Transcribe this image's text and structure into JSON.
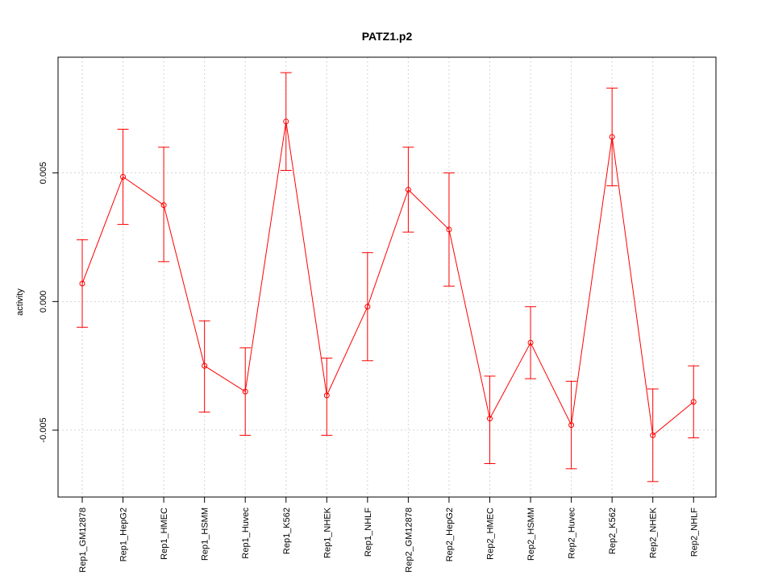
{
  "chart_data": {
    "type": "line",
    "title": "PATZ1.p2",
    "xlabel": "",
    "ylabel": "activity",
    "categories": [
      "Rep1_GM12878",
      "Rep1_HepG2",
      "Rep1_HMEC",
      "Rep1_HSMM",
      "Rep1_Huvec",
      "Rep1_K562",
      "Rep1_NHEK",
      "Rep1_NHLF",
      "Rep2_GM12878",
      "Rep2_HepG2",
      "Rep2_HMEC",
      "Rep2_HSMM",
      "Rep2_Huvec",
      "Rep2_K562",
      "Rep2_NHEK",
      "Rep2_NHLF"
    ],
    "values": [
      0.0007,
      0.00485,
      0.00375,
      -0.0025,
      -0.0035,
      0.007,
      -0.00365,
      -0.0002,
      0.00435,
      0.0028,
      -0.00455,
      -0.0016,
      -0.0048,
      0.0064,
      -0.0052,
      -0.0039
    ],
    "error_low": [
      -0.001,
      0.003,
      0.00155,
      -0.0043,
      -0.0052,
      0.0051,
      -0.0052,
      -0.0023,
      0.0027,
      0.0006,
      -0.0063,
      -0.003,
      -0.0065,
      0.0045,
      -0.007,
      -0.0053
    ],
    "error_high": [
      0.0024,
      0.0067,
      0.006,
      -0.00075,
      -0.0018,
      0.0089,
      -0.0022,
      0.0019,
      0.006,
      0.005,
      -0.0029,
      -0.0002,
      -0.0031,
      0.0083,
      -0.0034,
      -0.0025
    ],
    "ylim": [
      -0.0076,
      0.0095
    ],
    "yticks": [
      -0.005,
      0.0,
      0.005
    ],
    "ytick_labels": [
      "-0.005",
      "0.000",
      "0.005"
    ],
    "grid": true,
    "color": "#ff0000",
    "grid_color": "#d3d3d3"
  }
}
